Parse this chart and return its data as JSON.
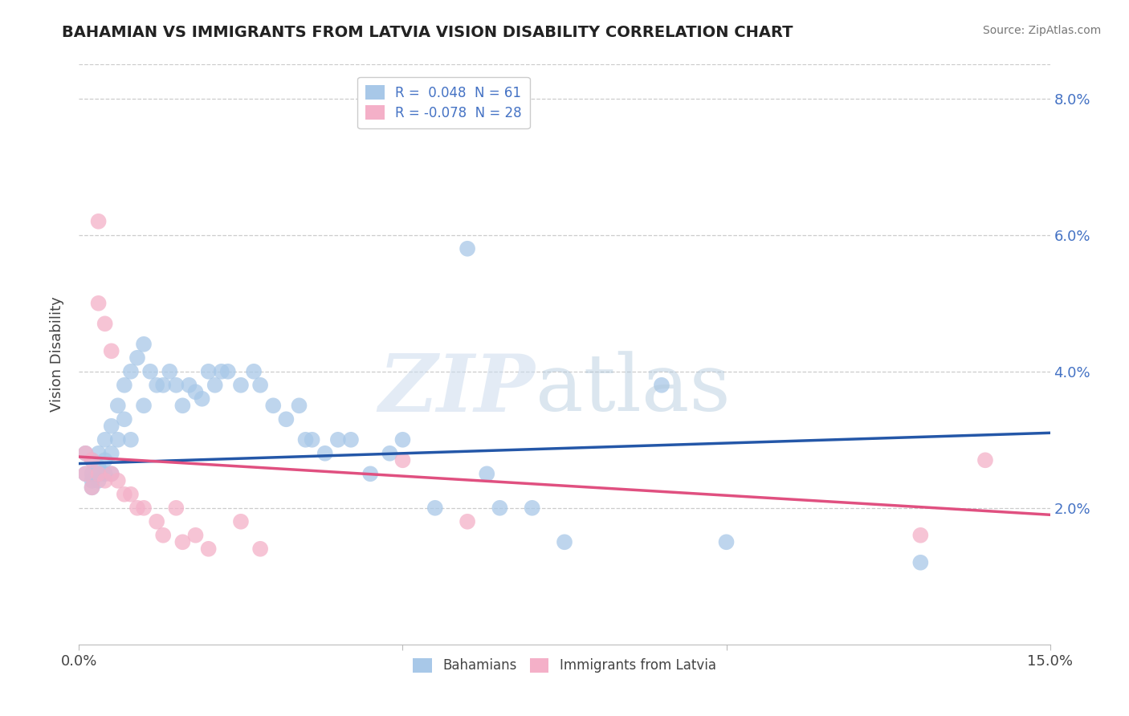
{
  "title": "BAHAMIAN VS IMMIGRANTS FROM LATVIA VISION DISABILITY CORRELATION CHART",
  "source": "Source: ZipAtlas.com",
  "ylabel": "Vision Disability",
  "xlim": [
    0.0,
    0.15
  ],
  "ylim": [
    0.0,
    0.085
  ],
  "yticks": [
    0.02,
    0.04,
    0.06,
    0.08
  ],
  "legend_r1": "R =  0.048  N = 61",
  "legend_r2": "R = -0.078  N = 28",
  "color_blue": "#a8c8e8",
  "color_pink": "#f4b0c8",
  "line_blue": "#2457a8",
  "line_pink": "#e05080",
  "blue_x": [
    0.001,
    0.001,
    0.002,
    0.002,
    0.002,
    0.002,
    0.003,
    0.003,
    0.003,
    0.003,
    0.004,
    0.004,
    0.004,
    0.005,
    0.005,
    0.005,
    0.006,
    0.006,
    0.007,
    0.007,
    0.008,
    0.008,
    0.009,
    0.01,
    0.01,
    0.011,
    0.012,
    0.013,
    0.014,
    0.015,
    0.016,
    0.017,
    0.018,
    0.019,
    0.02,
    0.021,
    0.022,
    0.023,
    0.025,
    0.027,
    0.028,
    0.03,
    0.032,
    0.034,
    0.035,
    0.036,
    0.038,
    0.04,
    0.042,
    0.045,
    0.048,
    0.05,
    0.055,
    0.06,
    0.063,
    0.065,
    0.07,
    0.075,
    0.09,
    0.1,
    0.13
  ],
  "blue_y": [
    0.028,
    0.025,
    0.027,
    0.025,
    0.024,
    0.023,
    0.028,
    0.026,
    0.025,
    0.024,
    0.03,
    0.027,
    0.025,
    0.032,
    0.028,
    0.025,
    0.035,
    0.03,
    0.038,
    0.033,
    0.04,
    0.03,
    0.042,
    0.044,
    0.035,
    0.04,
    0.038,
    0.038,
    0.04,
    0.038,
    0.035,
    0.038,
    0.037,
    0.036,
    0.04,
    0.038,
    0.04,
    0.04,
    0.038,
    0.04,
    0.038,
    0.035,
    0.033,
    0.035,
    0.03,
    0.03,
    0.028,
    0.03,
    0.03,
    0.025,
    0.028,
    0.03,
    0.02,
    0.058,
    0.025,
    0.02,
    0.02,
    0.015,
    0.038,
    0.015,
    0.012
  ],
  "pink_x": [
    0.001,
    0.001,
    0.002,
    0.002,
    0.003,
    0.003,
    0.003,
    0.004,
    0.004,
    0.005,
    0.005,
    0.006,
    0.007,
    0.008,
    0.009,
    0.01,
    0.012,
    0.013,
    0.015,
    0.016,
    0.018,
    0.02,
    0.025,
    0.028,
    0.05,
    0.06,
    0.13,
    0.14
  ],
  "pink_y": [
    0.028,
    0.025,
    0.027,
    0.023,
    0.062,
    0.05,
    0.025,
    0.047,
    0.024,
    0.043,
    0.025,
    0.024,
    0.022,
    0.022,
    0.02,
    0.02,
    0.018,
    0.016,
    0.02,
    0.015,
    0.016,
    0.014,
    0.018,
    0.014,
    0.027,
    0.018,
    0.016,
    0.027
  ],
  "blue_line": [
    [
      0.0,
      0.15
    ],
    [
      0.0265,
      0.031
    ]
  ],
  "pink_line": [
    [
      0.0,
      0.15
    ],
    [
      0.0275,
      0.019
    ]
  ]
}
